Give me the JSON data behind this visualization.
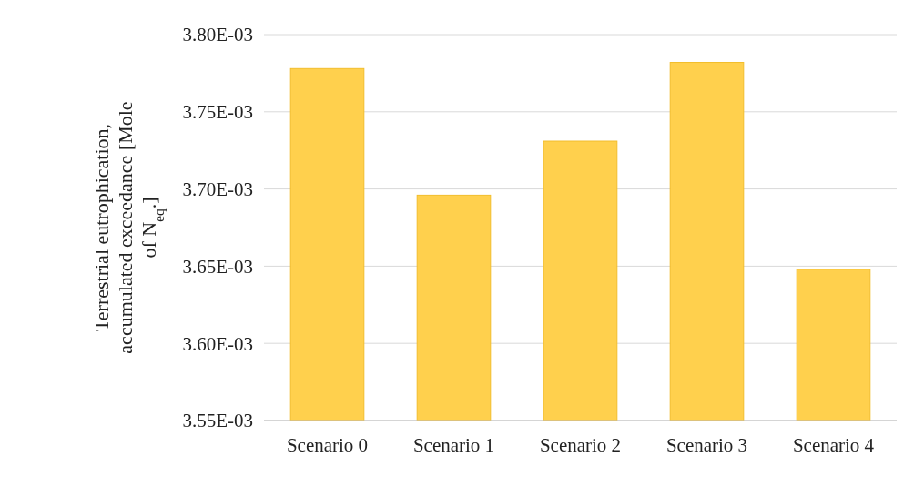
{
  "chart_data": {
    "type": "bar",
    "ylabel": "Terrestrial eutrophication, accumulated exceedance [Mole of N$_{eq}$.]",
    "categories": [
      "Scenario 0",
      "Scenario 1",
      "Scenario 2",
      "Scenario 3",
      "Scenario 4"
    ],
    "values": [
      0.003778,
      0.003696,
      0.003731,
      0.003782,
      0.003648
    ],
    "color": "#ffd04d",
    "ylim": [
      0.00355,
      0.0038
    ],
    "yticks": [
      {
        "value": 0.00355,
        "label": "3.55E-03"
      },
      {
        "value": 0.0036,
        "label": "3.60E-03"
      },
      {
        "value": 0.00365,
        "label": "3.65E-03"
      },
      {
        "value": 0.0037,
        "label": "3.70E-03"
      },
      {
        "value": 0.00375,
        "label": "3.75E-03"
      },
      {
        "value": 0.0038,
        "label": "3.80E-03"
      }
    ],
    "grid": true
  }
}
